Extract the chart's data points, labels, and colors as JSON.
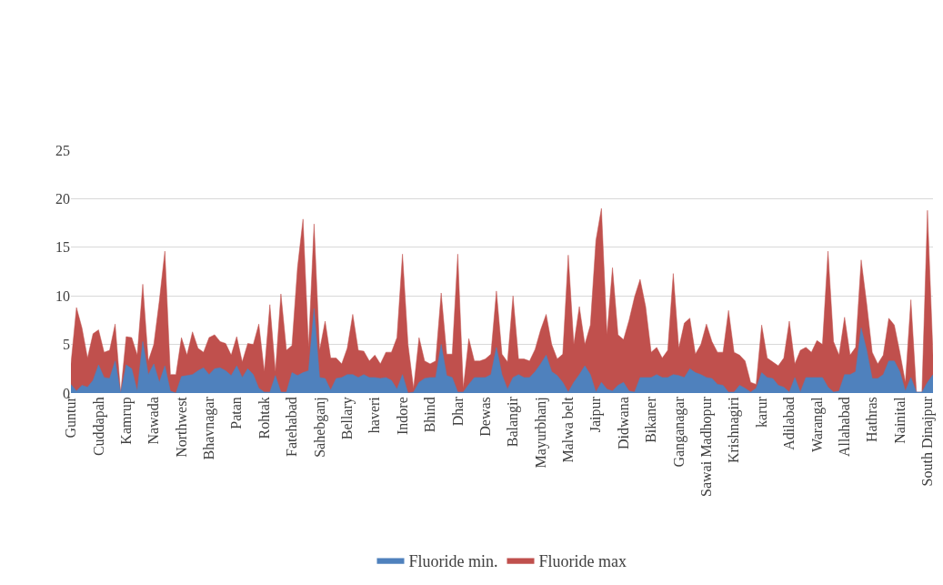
{
  "chart_data": {
    "type": "area",
    "categories": [
      "Guntur",
      null,
      null,
      null,
      null,
      "Cuddapah",
      null,
      null,
      null,
      null,
      "Kamrup",
      null,
      null,
      null,
      null,
      "Nawada",
      null,
      null,
      null,
      null,
      "Northwest",
      null,
      null,
      null,
      null,
      "Bhavnagar",
      null,
      null,
      null,
      null,
      "Patan",
      null,
      null,
      null,
      null,
      "Rohtak",
      null,
      null,
      null,
      null,
      "Fatehabad",
      null,
      null,
      null,
      null,
      "Sahebganj",
      null,
      null,
      null,
      null,
      "Bellary",
      null,
      null,
      null,
      null,
      "haveri",
      null,
      null,
      null,
      null,
      "Indore",
      null,
      null,
      null,
      null,
      "Bhind",
      null,
      null,
      null,
      null,
      "Dhar",
      null,
      null,
      null,
      null,
      "Dewas",
      null,
      null,
      null,
      null,
      "Balangir",
      null,
      null,
      null,
      null,
      "Mayurbhanj",
      null,
      null,
      null,
      null,
      "Malwa belt",
      null,
      null,
      null,
      null,
      "Jaipur",
      null,
      null,
      null,
      null,
      "Didwana",
      null,
      null,
      null,
      null,
      "Bikaner",
      null,
      null,
      null,
      null,
      "Ganganagar",
      null,
      null,
      null,
      null,
      "Sawai Madhopur",
      null,
      null,
      null,
      null,
      "Krishnagiri",
      null,
      null,
      null,
      null,
      "karur",
      null,
      null,
      null,
      null,
      "Adilabad",
      null,
      null,
      null,
      null,
      "Warangal",
      null,
      null,
      null,
      null,
      "Allahabad",
      null,
      null,
      null,
      null,
      "Hathras",
      null,
      null,
      null,
      null,
      "Nainital",
      null,
      null,
      null,
      null,
      "South Dinajpur",
      null
    ],
    "series": [
      {
        "name": "Fluoride min.",
        "color": "#4f81bd",
        "values": [
          0.9,
          0.2,
          0.8,
          0.6,
          1.3,
          2.9,
          1.6,
          1.5,
          3.3,
          0,
          2.9,
          2.5,
          0.2,
          5.3,
          1.9,
          3.0,
          1.1,
          2.8,
          0.2,
          0,
          1.7,
          1.8,
          1.9,
          2.3,
          2.6,
          1.9,
          2.5,
          2.6,
          2.3,
          1.8,
          2.8,
          1.6,
          2.5,
          1.9,
          0.5,
          0.1,
          0.1,
          1.8,
          0.1,
          0.1,
          2.1,
          1.8,
          2.1,
          2.3,
          8.7,
          1.6,
          1.5,
          0.3,
          1.5,
          1.6,
          1.9,
          1.9,
          1.6,
          1.9,
          1.6,
          1.6,
          1.5,
          1.6,
          1.3,
          0.4,
          1.9,
          0,
          0.1,
          1.1,
          1.5,
          1.6,
          1.6,
          5.0,
          1.8,
          1.6,
          0.1,
          0.1,
          0.9,
          1.6,
          1.6,
          1.6,
          1.9,
          4.7,
          1.9,
          0.4,
          1.6,
          1.9,
          1.6,
          1.6,
          2.2,
          3.0,
          3.9,
          2.2,
          1.8,
          1.1,
          0.1,
          1.1,
          1.9,
          2.8,
          1.9,
          0.1,
          1.1,
          0.4,
          0.2,
          0.8,
          1.1,
          0.2,
          0.1,
          1.6,
          1.6,
          1.6,
          1.9,
          1.6,
          1.6,
          1.9,
          1.8,
          1.6,
          2.5,
          2.1,
          1.9,
          1.6,
          1.5,
          0.9,
          0.8,
          0.1,
          0.1,
          0.8,
          0.5,
          0.1,
          0.5,
          2.1,
          1.6,
          1.5,
          0.8,
          0.6,
          0.1,
          1.6,
          0.1,
          1.6,
          1.6,
          1.6,
          1.6,
          0.6,
          0.1,
          0.2,
          1.9,
          1.9,
          2.2,
          6.7,
          4.4,
          1.5,
          1.5,
          1.9,
          3.3,
          3.3,
          2.2,
          0.2,
          1.6,
          0.1,
          0.1,
          1.1,
          1.9
        ]
      },
      {
        "name": "Fluoride max",
        "color": "#c0504d",
        "values": [
          3.0,
          8.8,
          6.7,
          3.6,
          6.1,
          6.5,
          4.2,
          4.4,
          7.1,
          0,
          5.8,
          5.7,
          3.9,
          11.2,
          3.3,
          5.0,
          9.5,
          14.6,
          1.9,
          1.9,
          5.7,
          3.9,
          6.3,
          4.6,
          4.2,
          5.7,
          6.0,
          5.3,
          5.1,
          3.9,
          5.8,
          3.2,
          5.1,
          5.0,
          7.1,
          2.2,
          9.1,
          2.2,
          10.2,
          4.4,
          4.9,
          12.9,
          17.9,
          4.7,
          17.4,
          4.4,
          7.4,
          3.6,
          3.6,
          3.0,
          4.6,
          8.1,
          4.4,
          4.3,
          3.3,
          3.9,
          3.0,
          4.2,
          4.2,
          5.7,
          14.3,
          5.0,
          0.5,
          5.7,
          3.3,
          3.0,
          3.3,
          10.3,
          4.0,
          4.0,
          14.3,
          0.5,
          5.6,
          3.3,
          3.3,
          3.5,
          4.0,
          10.5,
          4.0,
          3.2,
          10.0,
          3.5,
          3.5,
          3.3,
          4.5,
          6.5,
          8.1,
          5.0,
          3.5,
          4.0,
          14.2,
          5.0,
          8.9,
          5.0,
          7.0,
          15.7,
          19.0,
          6.0,
          12.9,
          6.0,
          5.5,
          7.5,
          9.9,
          11.7,
          8.9,
          4.2,
          4.7,
          3.6,
          4.4,
          12.3,
          4.6,
          7.2,
          7.7,
          4.0,
          5.0,
          7.1,
          5.3,
          4.2,
          4.2,
          8.5,
          4.2,
          3.9,
          3.3,
          1.1,
          0.9,
          7.0,
          3.6,
          3.2,
          2.8,
          3.6,
          7.4,
          3.0,
          4.4,
          4.7,
          4.2,
          5.4,
          5.0,
          14.6,
          5.3,
          3.9,
          7.8,
          3.9,
          4.7,
          13.7,
          9.2,
          4.2,
          3.0,
          3.9,
          7.7,
          7.0,
          4.2,
          1.1,
          9.6,
          0.1,
          0.1,
          18.8,
          3.9
        ]
      }
    ],
    "ylim": [
      0,
      25
    ],
    "yticks": [
      0,
      5,
      10,
      15,
      20,
      25
    ],
    "grid": "y",
    "legend": "bottom"
  }
}
